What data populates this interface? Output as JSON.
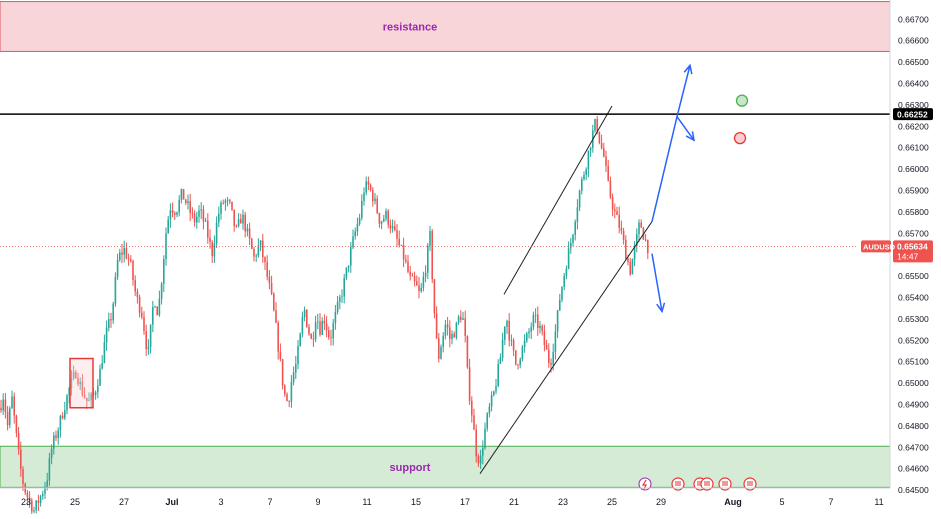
{
  "chart_data": {
    "type": "candlestick",
    "symbol": "AUDUSD",
    "last_price": "0.65634",
    "countdown": "14:47",
    "marked_level": "0.66252",
    "y_ticks": [
      "0.66700",
      "0.66600",
      "0.66500",
      "0.66400",
      "0.66300",
      "0.66200",
      "0.66100",
      "0.66000",
      "0.65900",
      "0.65800",
      "0.65700",
      "0.65600",
      "0.65500",
      "0.65400",
      "0.65300",
      "0.65200",
      "0.65100",
      "0.65000",
      "0.64900",
      "0.64800",
      "0.64700",
      "0.64600",
      "0.64500"
    ],
    "x_ticks": [
      "23",
      "25",
      "27",
      "Jul",
      "3",
      "7",
      "9",
      "11",
      "15",
      "17",
      "21",
      "23",
      "25",
      "29",
      "Aug",
      "5",
      "7",
      "11"
    ],
    "ylim": [
      0.645,
      0.6677
    ],
    "zones": [
      {
        "label": "resistance",
        "from": 0.66545,
        "to": 0.66778,
        "color": "#f7d5d9",
        "border": "#e05566",
        "label_color": "#9c27b0"
      },
      {
        "label": "support",
        "from": 0.64508,
        "to": 0.647,
        "color": "#d6ebd5",
        "border": "#4caf50",
        "label_color": "#9c27b0"
      }
    ],
    "path": [
      [
        0,
        0.6488
      ],
      [
        4,
        0.6495
      ],
      [
        7,
        0.6478
      ],
      [
        12,
        0.6492
      ],
      [
        18,
        0.6468
      ],
      [
        22,
        0.6455
      ],
      [
        26,
        0.6448
      ],
      [
        34,
        0.644
      ],
      [
        42,
        0.6448
      ],
      [
        47,
        0.6455
      ],
      [
        52,
        0.647
      ],
      [
        58,
        0.6478
      ],
      [
        64,
        0.6488
      ],
      [
        70,
        0.6498
      ],
      [
        76,
        0.6505
      ],
      [
        82,
        0.6496
      ],
      [
        88,
        0.649
      ],
      [
        94,
        0.6494
      ],
      [
        100,
        0.6505
      ],
      [
        106,
        0.6522
      ],
      [
        112,
        0.6532
      ],
      [
        118,
        0.6558
      ],
      [
        124,
        0.6562
      ],
      [
        130,
        0.6556
      ],
      [
        136,
        0.654
      ],
      [
        142,
        0.6532
      ],
      [
        148,
        0.6512
      ],
      [
        154,
        0.654
      ],
      [
        158,
        0.6532
      ],
      [
        162,
        0.655
      ],
      [
        166,
        0.657
      ],
      [
        170,
        0.6582
      ],
      [
        176,
        0.658
      ],
      [
        182,
        0.6588
      ],
      [
        188,
        0.6582
      ],
      [
        194,
        0.6575
      ],
      [
        200,
        0.658
      ],
      [
        206,
        0.6572
      ],
      [
        212,
        0.656
      ],
      [
        218,
        0.6578
      ],
      [
        224,
        0.6585
      ],
      [
        230,
        0.6582
      ],
      [
        236,
        0.657
      ],
      [
        242,
        0.6578
      ],
      [
        248,
        0.6568
      ],
      [
        254,
        0.6558
      ],
      [
        260,
        0.6565
      ],
      [
        266,
        0.6552
      ],
      [
        272,
        0.6538
      ],
      [
        276,
        0.6525
      ],
      [
        280,
        0.651
      ],
      [
        284,
        0.6495
      ],
      [
        288,
        0.649
      ],
      [
        292,
        0.6502
      ],
      [
        296,
        0.6508
      ],
      [
        300,
        0.652
      ],
      [
        304,
        0.6535
      ],
      [
        308,
        0.6525
      ],
      [
        312,
        0.6518
      ],
      [
        316,
        0.6532
      ],
      [
        320,
        0.6525
      ],
      [
        324,
        0.653
      ],
      [
        330,
        0.652
      ],
      [
        336,
        0.6532
      ],
      [
        342,
        0.6542
      ],
      [
        348,
        0.6555
      ],
      [
        354,
        0.6568
      ],
      [
        360,
        0.6578
      ],
      [
        364,
        0.659
      ],
      [
        368,
        0.6592
      ],
      [
        372,
        0.6588
      ],
      [
        376,
        0.6582
      ],
      [
        380,
        0.6575
      ],
      [
        386,
        0.6578
      ],
      [
        392,
        0.6572
      ],
      [
        398,
        0.6565
      ],
      [
        404,
        0.6558
      ],
      [
        410,
        0.6548
      ],
      [
        416,
        0.6545
      ],
      [
        420,
        0.654
      ],
      [
        426,
        0.6555
      ],
      [
        430,
        0.6568
      ],
      [
        434,
        0.6535
      ],
      [
        438,
        0.651
      ],
      [
        442,
        0.652
      ],
      [
        446,
        0.6528
      ],
      [
        450,
        0.652
      ],
      [
        456,
        0.6525
      ],
      [
        460,
        0.6532
      ],
      [
        464,
        0.6528
      ],
      [
        468,
        0.65
      ],
      [
        472,
        0.6485
      ],
      [
        476,
        0.6468
      ],
      [
        480,
        0.6462
      ],
      [
        484,
        0.6475
      ],
      [
        488,
        0.6485
      ],
      [
        494,
        0.6495
      ],
      [
        500,
        0.651
      ],
      [
        506,
        0.6532
      ],
      [
        510,
        0.652
      ],
      [
        516,
        0.6508
      ],
      [
        522,
        0.6515
      ],
      [
        528,
        0.6522
      ],
      [
        534,
        0.653
      ],
      [
        540,
        0.6525
      ],
      [
        546,
        0.6515
      ],
      [
        550,
        0.6508
      ],
      [
        556,
        0.6525
      ],
      [
        560,
        0.654
      ],
      [
        566,
        0.6555
      ],
      [
        572,
        0.6568
      ],
      [
        576,
        0.658
      ],
      [
        580,
        0.659
      ],
      [
        586,
        0.6602
      ],
      [
        592,
        0.6615
      ],
      [
        596,
        0.6622
      ],
      [
        600,
        0.6612
      ],
      [
        604,
        0.6605
      ],
      [
        608,
        0.6592
      ],
      [
        614,
        0.658
      ],
      [
        620,
        0.6572
      ],
      [
        626,
        0.656
      ],
      [
        630,
        0.6552
      ],
      [
        636,
        0.6565
      ],
      [
        640,
        0.6575
      ],
      [
        644,
        0.6568
      ],
      [
        648,
        0.6563
      ]
    ],
    "annotations": {
      "channel": {
        "lower": [
          [
            480,
            0.64572
          ],
          [
            652,
            0.6575
          ]
        ],
        "upper": [
          [
            504,
            0.6541
          ],
          [
            612,
            0.6629
          ]
        ]
      },
      "box": {
        "x1": 70,
        "x2": 93,
        "from": 0.6488,
        "to": 0.6511
      },
      "arrows": [
        {
          "points": [
            [
              652,
              0.6575
            ],
            [
              677,
              0.6624
            ],
            [
              690,
              0.6648
            ]
          ]
        },
        {
          "points": [
            [
              677,
              0.6624
            ],
            [
              694,
              0.6613
            ]
          ]
        },
        {
          "points": [
            [
              652,
              0.656
            ],
            [
              662,
              0.6533
            ]
          ]
        }
      ],
      "markers": [
        {
          "x": 742,
          "y": 0.66315,
          "color": "#4caf50",
          "fill": "#c8e6c9"
        },
        {
          "x": 740,
          "y": 0.6614,
          "color": "#e53935",
          "fill": "#ffcdd2"
        }
      ]
    }
  }
}
